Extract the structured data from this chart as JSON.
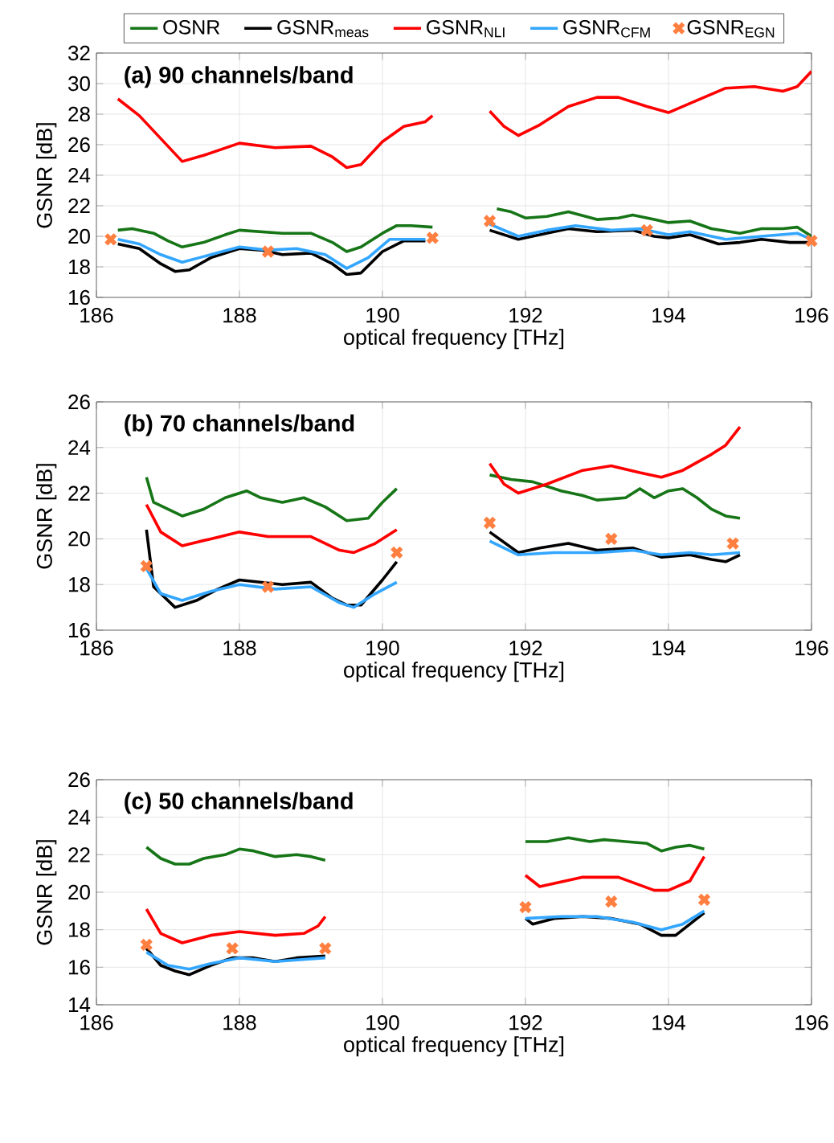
{
  "chart_data": [
    {
      "type": "line",
      "title": "(a) 90 channels/band",
      "xlabel": "optical frequency [THz]",
      "ylabel": "GSNR [dB]",
      "xlim": [
        186,
        196
      ],
      "xticks": [
        186,
        188,
        190,
        192,
        194,
        196
      ],
      "ylim": [
        16,
        32
      ],
      "yticks": [
        16,
        18,
        20,
        22,
        24,
        26,
        28,
        30,
        32
      ],
      "grid": true,
      "legend": "top",
      "series": [
        {
          "name": "OSNR",
          "color": "#167516",
          "type": "line",
          "x": [
            186.3,
            186.5,
            186.8,
            187.0,
            187.2,
            187.5,
            187.8,
            188.0,
            188.3,
            188.6,
            189.0,
            189.3,
            189.5,
            189.7,
            190.0,
            190.2,
            190.4,
            190.7,
            191.1,
            191.6,
            191.8,
            192.0,
            192.3,
            192.6,
            193.0,
            193.3,
            193.5,
            193.8,
            194.0,
            194.3,
            194.6,
            195.0,
            195.3,
            195.6,
            195.8,
            196.0
          ],
          "values": [
            20.4,
            20.5,
            20.2,
            19.7,
            19.3,
            19.6,
            20.1,
            20.4,
            20.3,
            20.2,
            20.2,
            19.6,
            19.0,
            19.3,
            20.2,
            20.7,
            20.7,
            20.6,
            null,
            21.8,
            21.6,
            21.2,
            21.3,
            21.6,
            21.1,
            21.2,
            21.4,
            21.1,
            20.9,
            21.0,
            20.5,
            20.2,
            20.5,
            20.5,
            20.6,
            20.0
          ]
        },
        {
          "name": "GSNR$_{meas}$",
          "color": "#000000",
          "type": "line",
          "x": [
            186.3,
            186.6,
            186.9,
            187.1,
            187.3,
            187.6,
            188.0,
            188.3,
            188.6,
            189.0,
            189.3,
            189.5,
            189.7,
            190.0,
            190.3,
            190.6,
            191.1,
            191.5,
            191.9,
            192.2,
            192.6,
            193.0,
            193.5,
            193.8,
            194.0,
            194.3,
            194.7,
            195.0,
            195.3,
            195.7,
            196.0
          ],
          "values": [
            19.5,
            19.2,
            18.2,
            17.7,
            17.8,
            18.6,
            19.2,
            19.1,
            18.8,
            18.9,
            18.2,
            17.5,
            17.6,
            19.0,
            19.7,
            19.7,
            null,
            20.4,
            19.8,
            20.1,
            20.5,
            20.3,
            20.4,
            20.0,
            19.9,
            20.1,
            19.5,
            19.6,
            19.8,
            19.6,
            19.6
          ]
        },
        {
          "name": "GSNR$_{NLI}$",
          "color": "#ff0000",
          "type": "line",
          "x": [
            186.3,
            186.6,
            186.9,
            187.2,
            187.5,
            188.0,
            188.5,
            189.0,
            189.3,
            189.5,
            189.7,
            190.0,
            190.3,
            190.6,
            190.7,
            191.1,
            191.5,
            191.7,
            191.9,
            192.2,
            192.6,
            193.0,
            193.3,
            193.7,
            194.0,
            194.3,
            194.8,
            195.2,
            195.6,
            195.8,
            196.0
          ],
          "values": [
            29.0,
            27.9,
            26.4,
            24.9,
            25.3,
            26.1,
            25.8,
            25.9,
            25.2,
            24.5,
            24.7,
            26.2,
            27.2,
            27.5,
            27.9,
            null,
            28.2,
            27.2,
            26.6,
            27.3,
            28.5,
            29.1,
            29.1,
            28.5,
            28.1,
            28.7,
            29.7,
            29.8,
            29.5,
            29.8,
            30.8
          ]
        },
        {
          "name": "GSNR$_{CFM}$",
          "color": "#33a6ff",
          "type": "line",
          "x": [
            186.3,
            186.6,
            186.9,
            187.2,
            187.6,
            188.0,
            188.4,
            188.8,
            189.2,
            189.5,
            189.8,
            190.1,
            190.6,
            191.1,
            191.5,
            191.9,
            192.3,
            192.7,
            193.2,
            193.6,
            194.0,
            194.3,
            194.8,
            195.3,
            195.8,
            196.0
          ],
          "values": [
            19.8,
            19.5,
            18.8,
            18.3,
            18.8,
            19.3,
            19.1,
            19.2,
            18.8,
            17.9,
            18.6,
            19.8,
            19.8,
            null,
            20.8,
            20.0,
            20.4,
            20.7,
            20.4,
            20.5,
            20.1,
            20.3,
            19.8,
            20.0,
            20.2,
            19.8
          ]
        },
        {
          "name": "GSNR$_{EGN}$",
          "color": "#ff7f41",
          "type": "scatter",
          "marker": "cross",
          "x": [
            186.2,
            188.4,
            190.7,
            191.5,
            193.7,
            196.0
          ],
          "values": [
            19.8,
            19.0,
            19.9,
            21.0,
            20.4,
            19.7
          ]
        }
      ]
    },
    {
      "type": "line",
      "title": "(b) 70 channels/band",
      "xlabel": "optical frequency [THz]",
      "ylabel": "GSNR [dB]",
      "xlim": [
        186,
        196
      ],
      "xticks": [
        186,
        188,
        190,
        192,
        194,
        196
      ],
      "ylim": [
        16,
        26
      ],
      "yticks": [
        16,
        18,
        20,
        22,
        24,
        26
      ],
      "grid": true,
      "series": [
        {
          "color": "#167516",
          "type": "line",
          "x": [
            186.7,
            186.8,
            187.0,
            187.2,
            187.5,
            187.8,
            188.1,
            188.3,
            188.6,
            188.9,
            189.2,
            189.5,
            189.8,
            190.0,
            190.2,
            190.8,
            191.5,
            191.8,
            192.1,
            192.5,
            192.8,
            193.0,
            193.4,
            193.6,
            193.8,
            194.0,
            194.2,
            194.4,
            194.6,
            194.8,
            195.0
          ],
          "values": [
            22.7,
            21.6,
            21.3,
            21.0,
            21.3,
            21.8,
            22.1,
            21.8,
            21.6,
            21.8,
            21.4,
            20.8,
            20.9,
            21.6,
            22.2,
            null,
            22.8,
            22.6,
            22.5,
            22.1,
            21.9,
            21.7,
            21.8,
            22.2,
            21.8,
            22.1,
            22.2,
            21.8,
            21.3,
            21.0,
            20.9
          ]
        },
        {
          "color": "#000000",
          "type": "line",
          "x": [
            186.7,
            186.8,
            187.1,
            187.4,
            187.7,
            188.0,
            188.3,
            188.6,
            189.0,
            189.3,
            189.5,
            189.7,
            190.0,
            190.2,
            190.8,
            191.5,
            191.9,
            192.2,
            192.6,
            193.0,
            193.5,
            193.9,
            194.3,
            194.6,
            194.8,
            195.0
          ],
          "values": [
            20.4,
            17.9,
            17.0,
            17.3,
            17.8,
            18.2,
            18.1,
            18.0,
            18.1,
            17.4,
            17.1,
            17.1,
            18.2,
            19.0,
            null,
            20.3,
            19.4,
            19.6,
            19.8,
            19.5,
            19.6,
            19.2,
            19.3,
            19.1,
            19.0,
            19.3
          ]
        },
        {
          "color": "#ff0000",
          "type": "line",
          "x": [
            186.7,
            186.9,
            187.2,
            187.6,
            188.0,
            188.4,
            189.0,
            189.4,
            189.6,
            189.9,
            190.2,
            190.8,
            191.5,
            191.7,
            191.9,
            192.3,
            192.8,
            193.2,
            193.6,
            193.9,
            194.2,
            194.6,
            194.8,
            195.0
          ],
          "values": [
            21.5,
            20.3,
            19.7,
            20.0,
            20.3,
            20.1,
            20.1,
            19.5,
            19.4,
            19.8,
            20.4,
            null,
            23.3,
            22.4,
            22.0,
            22.4,
            23.0,
            23.2,
            22.9,
            22.7,
            23.0,
            23.7,
            24.1,
            24.9
          ]
        },
        {
          "color": "#33a6ff",
          "type": "line",
          "x": [
            186.7,
            186.9,
            187.2,
            187.6,
            188.0,
            188.5,
            189.0,
            189.4,
            189.6,
            189.9,
            190.2,
            190.8,
            191.5,
            191.9,
            192.4,
            193.0,
            193.5,
            193.9,
            194.3,
            194.6,
            195.0
          ],
          "values": [
            18.7,
            17.6,
            17.3,
            17.7,
            18.0,
            17.8,
            17.9,
            17.2,
            17.0,
            17.6,
            18.1,
            null,
            19.9,
            19.3,
            19.4,
            19.4,
            19.5,
            19.3,
            19.4,
            19.3,
            19.4
          ]
        },
        {
          "color": "#ff7f41",
          "type": "scatter",
          "marker": "cross",
          "x": [
            186.7,
            188.4,
            190.2,
            191.5,
            193.2,
            194.9
          ],
          "values": [
            18.8,
            17.9,
            19.4,
            20.7,
            20.0,
            19.8
          ]
        }
      ]
    },
    {
      "type": "line",
      "title": "(c) 50 channels/band",
      "xlabel": "optical frequency [THz]",
      "ylabel": "GSNR [dB]",
      "xlim": [
        186,
        196
      ],
      "xticks": [
        186,
        188,
        190,
        192,
        194,
        196
      ],
      "ylim": [
        14,
        26
      ],
      "yticks": [
        14,
        16,
        18,
        20,
        22,
        24,
        26
      ],
      "grid": true,
      "series": [
        {
          "color": "#167516",
          "type": "line",
          "x": [
            186.7,
            186.9,
            187.1,
            187.3,
            187.5,
            187.8,
            188.0,
            188.2,
            188.5,
            188.8,
            189.0,
            189.2,
            190.5,
            192.0,
            192.3,
            192.6,
            192.9,
            193.1,
            193.4,
            193.7,
            193.9,
            194.1,
            194.3,
            194.5
          ],
          "values": [
            22.4,
            21.8,
            21.5,
            21.5,
            21.8,
            22.0,
            22.3,
            22.2,
            21.9,
            22.0,
            21.9,
            21.7,
            null,
            22.7,
            22.7,
            22.9,
            22.7,
            22.8,
            22.7,
            22.6,
            22.2,
            22.4,
            22.5,
            22.3
          ]
        },
        {
          "color": "#000000",
          "type": "line",
          "x": [
            186.7,
            186.9,
            187.1,
            187.3,
            187.6,
            187.9,
            188.2,
            188.5,
            188.8,
            189.2,
            190.5,
            192.0,
            192.1,
            192.4,
            192.8,
            193.2,
            193.6,
            193.9,
            194.1,
            194.3,
            194.5
          ],
          "values": [
            17.0,
            16.1,
            15.8,
            15.6,
            16.1,
            16.5,
            16.5,
            16.3,
            16.5,
            16.6,
            null,
            18.6,
            18.3,
            18.6,
            18.7,
            18.6,
            18.3,
            17.7,
            17.7,
            18.3,
            18.9
          ]
        },
        {
          "color": "#ff0000",
          "type": "line",
          "x": [
            186.7,
            186.9,
            187.2,
            187.6,
            188.0,
            188.5,
            188.9,
            189.1,
            189.2,
            190.5,
            192.0,
            192.2,
            192.8,
            193.3,
            193.8,
            194.0,
            194.3,
            194.5
          ],
          "values": [
            19.1,
            17.8,
            17.3,
            17.7,
            17.9,
            17.7,
            17.8,
            18.2,
            18.7,
            null,
            20.9,
            20.3,
            20.8,
            20.8,
            20.1,
            20.1,
            20.6,
            21.9
          ]
        },
        {
          "color": "#33a6ff",
          "type": "line",
          "x": [
            186.7,
            187.0,
            187.3,
            187.6,
            188.0,
            188.5,
            189.2,
            190.5,
            192.0,
            192.5,
            193.0,
            193.5,
            193.9,
            194.2,
            194.5
          ],
          "values": [
            16.8,
            16.1,
            15.9,
            16.2,
            16.5,
            16.3,
            16.5,
            null,
            18.6,
            18.7,
            18.7,
            18.4,
            18.0,
            18.3,
            19.0
          ]
        },
        {
          "color": "#ff7f41",
          "type": "scatter",
          "marker": "cross",
          "x": [
            186.7,
            187.9,
            189.2,
            192.0,
            193.2,
            194.5
          ],
          "values": [
            17.2,
            17.0,
            17.0,
            19.2,
            19.5,
            19.6
          ]
        }
      ]
    }
  ]
}
